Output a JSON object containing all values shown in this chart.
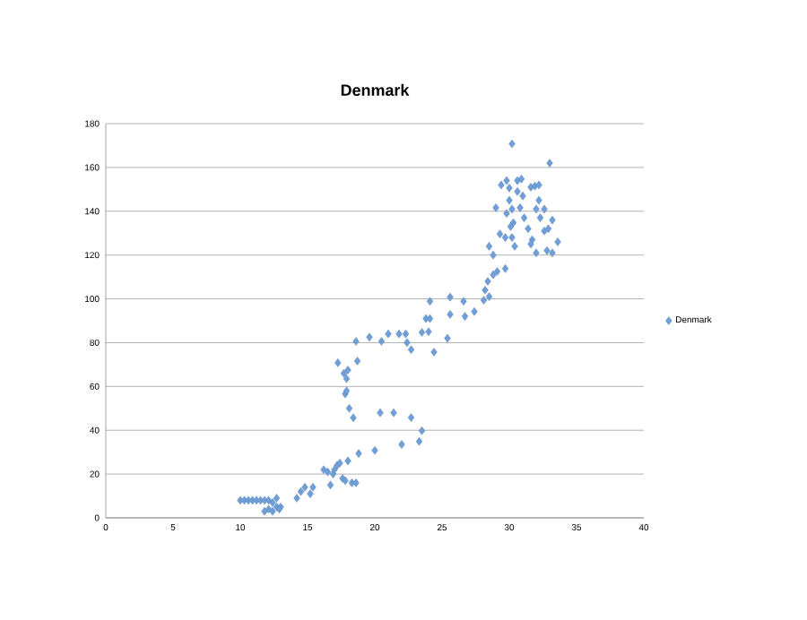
{
  "chart_data": {
    "type": "scatter",
    "title": "Denmark",
    "xlim": [
      0,
      40
    ],
    "ylim": [
      0,
      180
    ],
    "xticks": [
      0,
      5,
      10,
      15,
      20,
      25,
      30,
      35,
      40
    ],
    "yticks": [
      0,
      20,
      40,
      60,
      80,
      100,
      120,
      140,
      160,
      180
    ],
    "grid": "y",
    "legend": "right",
    "marker": "diamond",
    "series": [
      {
        "name": "Denmark",
        "color": "#6e9fd9",
        "x": [
          10,
          10.3,
          10.6,
          10.9,
          11.2,
          11.5,
          11.8,
          12.1,
          12.4,
          12.7,
          11.8,
          12.1,
          12.4,
          12.7,
          13,
          12.9,
          14.2,
          14.5,
          14.8,
          15.2,
          15.4,
          16.2,
          16.5,
          16.7,
          16.9,
          17.0,
          17.2,
          17.4,
          17.6,
          17.8,
          18,
          18.3,
          18.6,
          17.25,
          18.0,
          17.7,
          17.9,
          17.8,
          17.9,
          18.1,
          18.4,
          18.6,
          18.7,
          18.8,
          19.6,
          20.5,
          21,
          21.8,
          22.3,
          22.4,
          22.7,
          24.4,
          23.5,
          23.8,
          24.1,
          24.1,
          24,
          25.4,
          25.6,
          25.6,
          26.6,
          26.7,
          27.4,
          28.1,
          28.5,
          28.2,
          28.4,
          28.8,
          29.1,
          29.7,
          28.5,
          28.8,
          29.0,
          29.3,
          29.7,
          29.8,
          30.2,
          30.0,
          30.2,
          30.3,
          30.1,
          30.2,
          30.4,
          30.6,
          30.9,
          31.0,
          31.1,
          31.4,
          31.6,
          31.9,
          32.2,
          32.0,
          32.3,
          31.7,
          31.6,
          32.0,
          33.0,
          32.8,
          33.2,
          33.2,
          33.6,
          32.6,
          32.9,
          29.4,
          30.0,
          30.6,
          30.8,
          29.8,
          32.2,
          32.6,
          20.4,
          21.4,
          22.7,
          23.5,
          23.3,
          22.0,
          20.0
        ],
        "values": [
          8,
          8,
          8,
          8,
          8,
          8,
          8,
          8,
          7,
          9,
          3,
          4,
          3,
          5,
          5,
          4,
          9,
          12,
          14,
          11,
          14,
          22,
          21,
          15,
          20,
          22,
          24,
          25,
          18,
          17,
          26,
          16,
          16,
          70.8,
          67.5,
          66,
          63.5,
          56.6,
          58,
          50,
          45.7,
          80.6,
          71.6,
          29.4,
          82.5,
          80.6,
          84,
          84,
          84,
          80,
          76.8,
          75.7,
          84.7,
          91,
          91,
          98.9,
          85,
          82,
          100.8,
          92.9,
          98.9,
          92,
          94.2,
          99.4,
          101,
          104,
          108,
          111,
          112.5,
          113.8,
          124,
          120,
          141.6,
          129.6,
          128,
          154,
          170.8,
          145,
          141,
          134.8,
          133,
          128,
          124,
          154,
          154.7,
          147,
          137,
          132,
          151,
          151.5,
          145,
          141,
          137,
          127,
          125,
          121,
          162,
          122,
          121,
          136,
          126,
          131,
          132,
          152,
          150.6,
          149,
          141.6,
          139,
          152,
          141,
          48,
          48,
          45.8,
          39.8,
          34.9,
          33.5,
          30.8
        ]
      }
    ]
  }
}
